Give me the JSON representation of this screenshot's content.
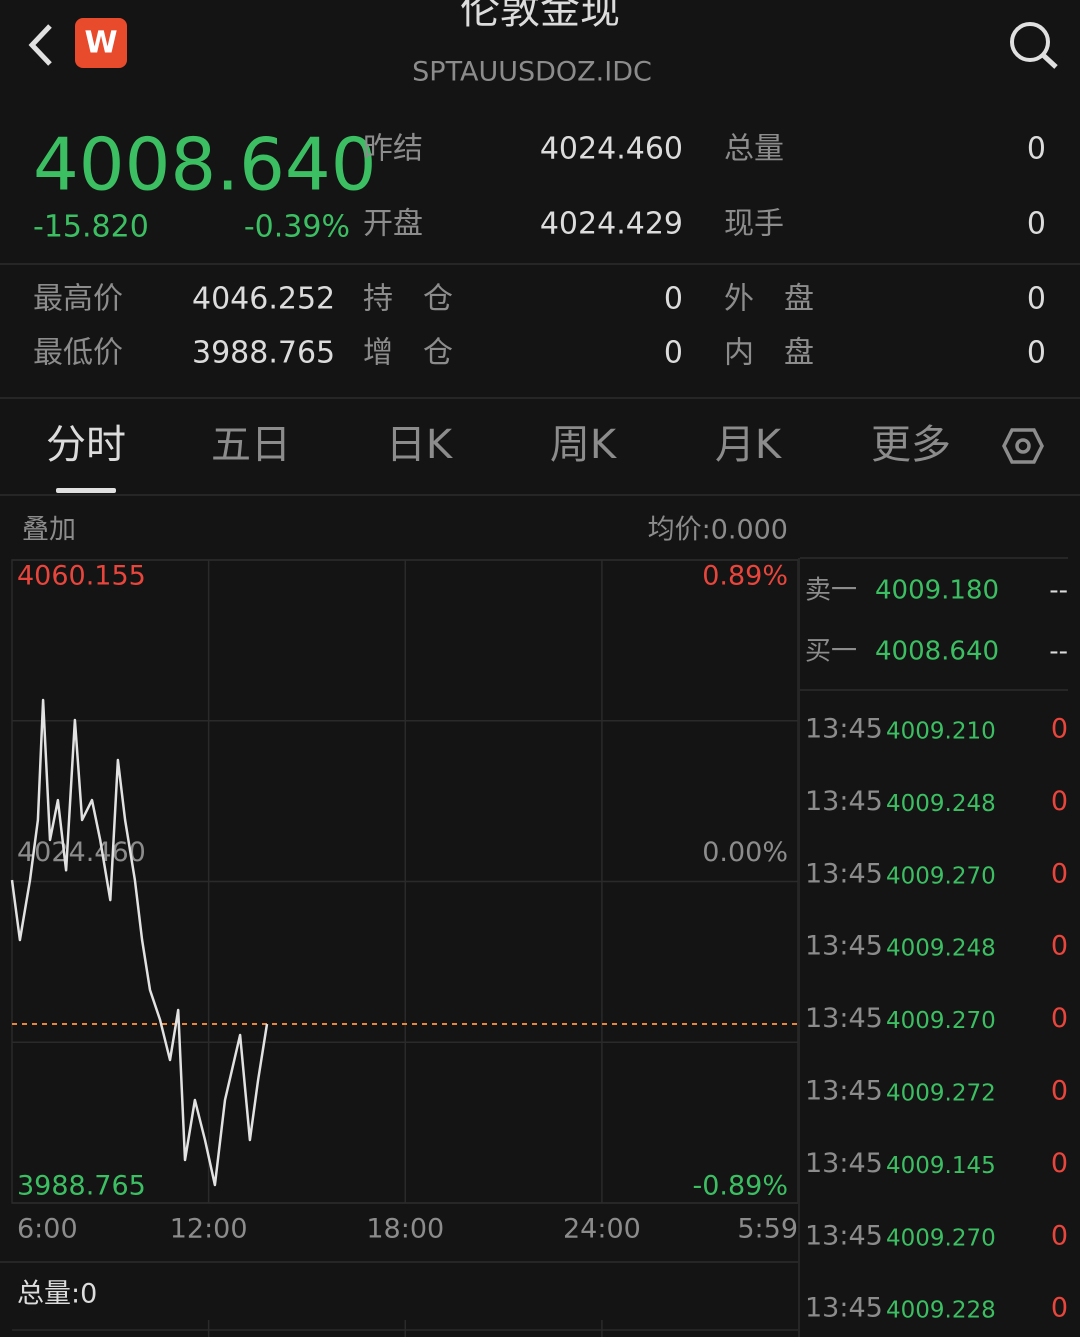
{
  "header": {
    "title": "伦敦金现",
    "code": "SPTAUUSDOZ.IDC",
    "logo": "W"
  },
  "quote": {
    "price": "4008.640",
    "change": "-15.820",
    "change_pct": "-0.39%",
    "fields": [
      {
        "label": "昨结",
        "value": "4024.460"
      },
      {
        "label": "总量",
        "value": "0"
      },
      {
        "label": "开盘",
        "value": "4024.429"
      },
      {
        "label": "现手",
        "value": "0"
      }
    ]
  },
  "stats": [
    {
      "label": "最高价",
      "value": "4046.252"
    },
    {
      "label": "持　仓",
      "value": "0"
    },
    {
      "label": "外　盘",
      "value": "0"
    },
    {
      "label": "最低价",
      "value": "3988.765"
    },
    {
      "label": "增　仓",
      "value": "0"
    },
    {
      "label": "内　盘",
      "value": "0"
    }
  ],
  "tabs": [
    "分时",
    "五日",
    "日K",
    "周K",
    "月K",
    "更多"
  ],
  "chart_header": {
    "overlay": "叠加",
    "avg_price": "均价:0.000"
  },
  "chart_data": {
    "type": "line",
    "color": "#e2e2e2",
    "reference_color": "#e8873a",
    "x": [
      6,
      6.24,
      6.55,
      6.79,
      6.95,
      7.16,
      7.4,
      7.65,
      7.92,
      8.14,
      8.44,
      8.69,
      9.0,
      9.23,
      9.45,
      9.75,
      9.97,
      10.21,
      10.52,
      10.82,
      11.07,
      11.28,
      11.58,
      11.89,
      12.19,
      12.5,
      12.96,
      13.26,
      13.51,
      13.78
    ],
    "values": [
      4024.62,
      4017.96,
      4024.62,
      4031.29,
      4044.61,
      4029.07,
      4033.5,
      4025.7,
      4042.39,
      4031.29,
      4033.5,
      4029.07,
      4022.4,
      4037.95,
      4031.29,
      4024.62,
      4017.96,
      4012.41,
      4009.08,
      4004.64,
      4010.19,
      3993.54,
      4000.2,
      3995.76,
      3990.76,
      4000.2,
      4007.42,
      3995.76,
      4002.42,
      4008.64
    ],
    "xlim": [
      6,
      29.983
    ],
    "xticks": [
      {
        "value": 6,
        "label": "6:00"
      },
      {
        "value": 12,
        "label": "12:00"
      },
      {
        "value": 18,
        "label": "18:00"
      },
      {
        "value": 24,
        "label": "24:00"
      },
      {
        "value": 29.983,
        "label": "5:59"
      }
    ],
    "ylim": [
      3988.765,
      4060.155
    ],
    "yticks": [
      4060.155,
      {
        "value": 4024.46,
        "label": "4024.460"
      },
      3988.765
    ],
    "y2lim": [
      -0.89,
      0.89
    ],
    "y2ticks": [
      {
        "value": 0.89,
        "label": "0.89%"
      },
      {
        "value": 0,
        "label": "0.00%"
      },
      {
        "value": -0.89,
        "label": "-0.89%"
      }
    ],
    "grid": true
  },
  "order_book": [
    {
      "label": "卖一",
      "price": "4009.180",
      "volume": "--"
    },
    {
      "label": "买一",
      "price": "4008.640",
      "volume": "--"
    }
  ],
  "trades": [
    {
      "time": "13:45",
      "price": "4009.210",
      "volume": "0"
    },
    {
      "time": "13:45",
      "price": "4009.248",
      "volume": "0"
    },
    {
      "time": "13:45",
      "price": "4009.270",
      "volume": "0"
    },
    {
      "time": "13:45",
      "price": "4009.248",
      "volume": "0"
    },
    {
      "time": "13:45",
      "price": "4009.270",
      "volume": "0"
    },
    {
      "time": "13:45",
      "price": "4009.272",
      "volume": "0"
    },
    {
      "time": "13:45",
      "price": "4009.145",
      "volume": "0"
    },
    {
      "time": "13:45",
      "price": "4009.270",
      "volume": "0"
    },
    {
      "time": "13:45",
      "price": "4009.228",
      "volume": "0"
    }
  ],
  "footer": {
    "total": "总量:0"
  }
}
